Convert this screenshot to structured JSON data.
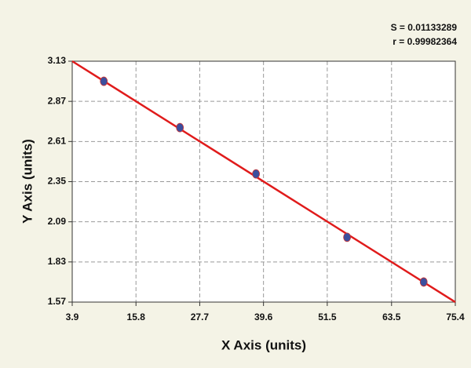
{
  "chart_data": {
    "type": "scatter",
    "annotations": [
      "S = 0.01133289",
      "r = 0.99982364"
    ],
    "x_label": "X Axis (units)",
    "y_label": "Y Axis (units)",
    "x": [
      9.8,
      24.0,
      38.2,
      55.2,
      69.5
    ],
    "values": [
      3.0,
      2.7,
      2.4,
      1.99,
      1.7
    ],
    "color": "#3b4f9e",
    "fit_line": {
      "x": [
        3.9,
        75.4
      ],
      "y": [
        3.13,
        1.57
      ],
      "color": "#e01b1b"
    },
    "xlim": [
      3.9,
      75.4
    ],
    "xticks": [
      3.9,
      15.8,
      27.7,
      39.6,
      51.5,
      63.5,
      75.4
    ],
    "ylim": [
      1.57,
      3.13
    ],
    "yticks": [
      1.57,
      1.83,
      2.09,
      2.35,
      2.61,
      2.87,
      3.13
    ],
    "grid": true
  }
}
